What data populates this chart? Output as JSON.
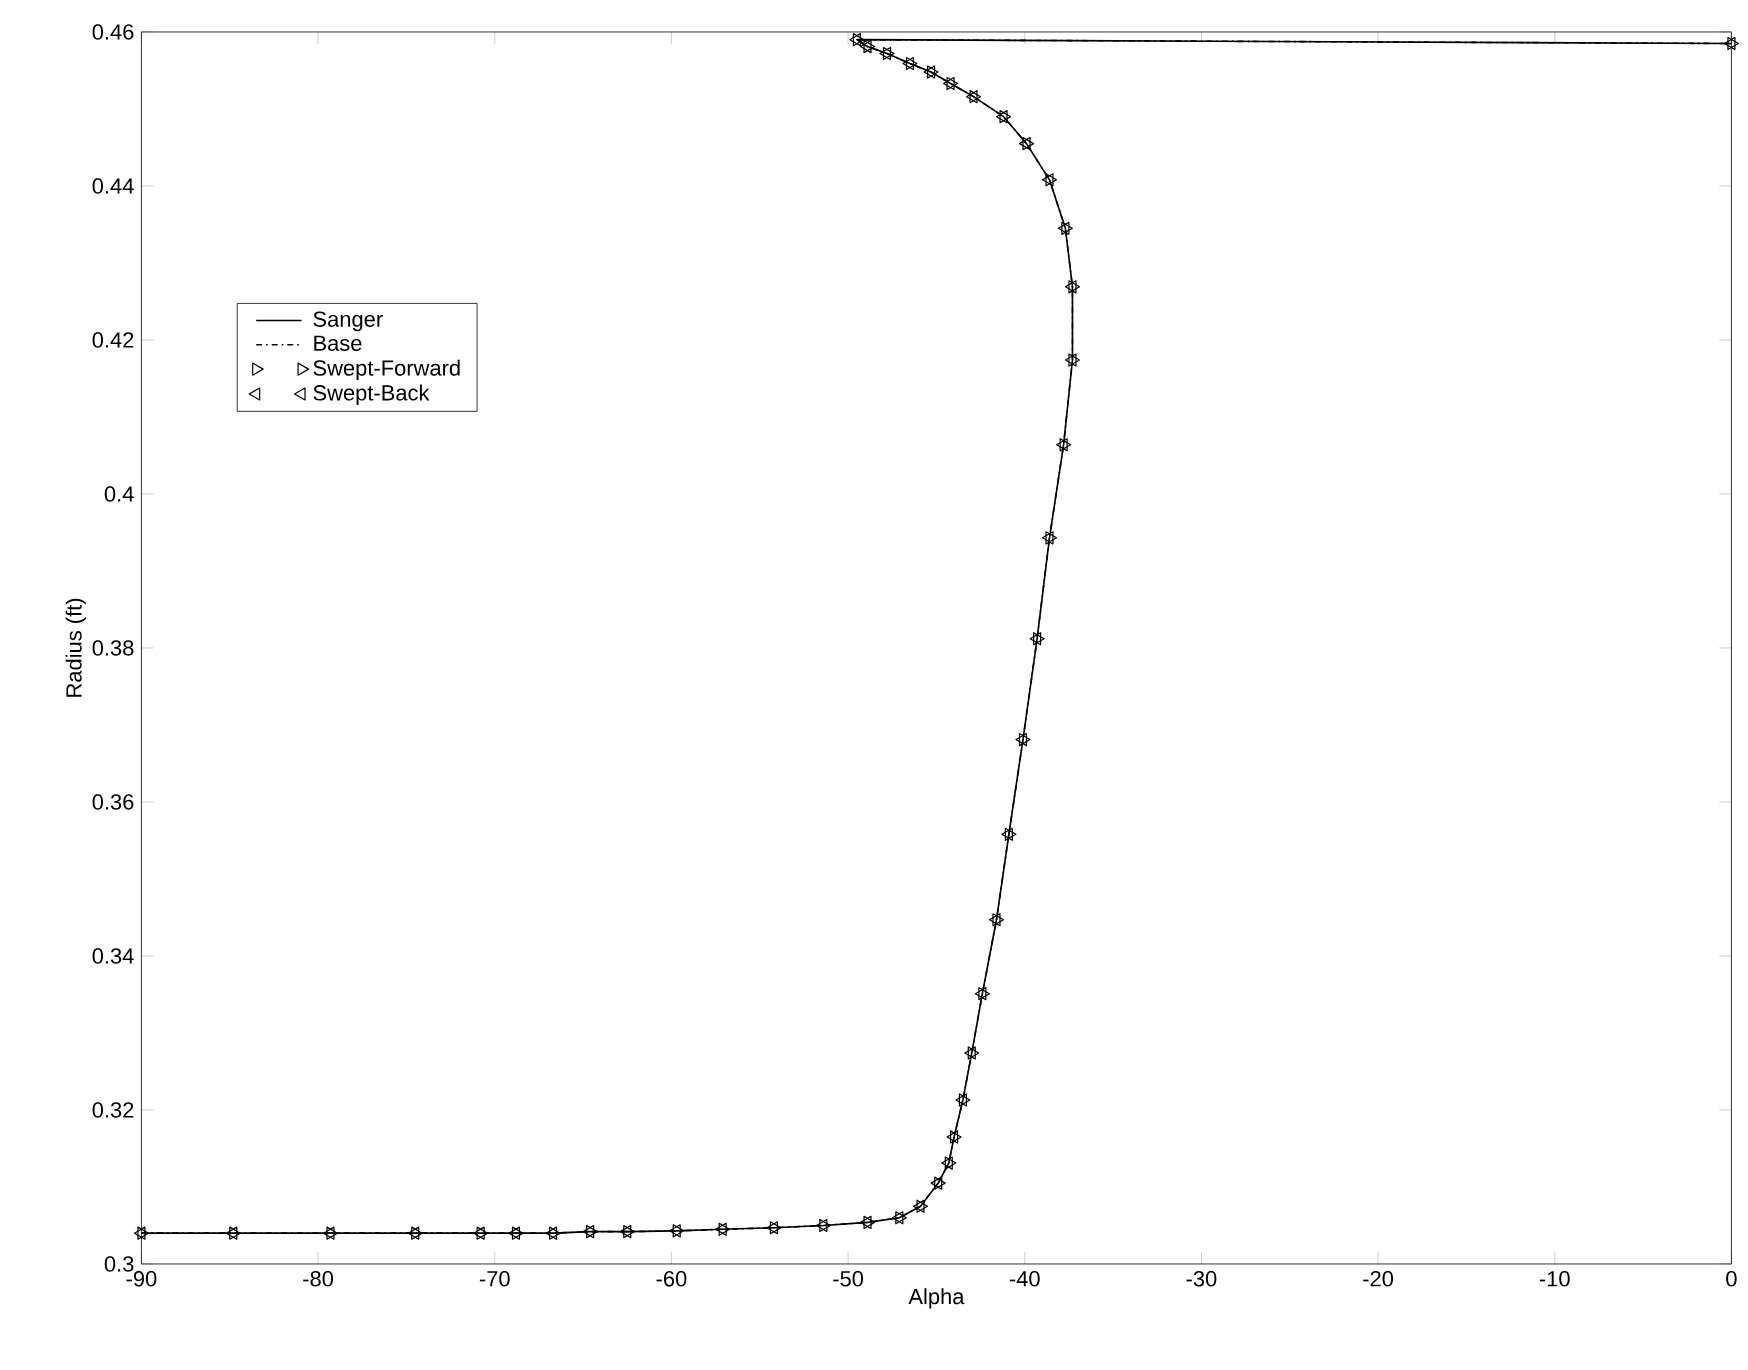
{
  "chart_data": {
    "type": "line",
    "xlabel": "Alpha",
    "ylabel": "Radius (ft)",
    "x": [
      -90,
      -84.8,
      -79.3,
      -74.5,
      -70.8,
      -68.8,
      -66.7,
      -64.6,
      -62.5,
      -59.7,
      -57.1,
      -54.2,
      -51.4,
      -48.9,
      -47.1,
      -45.9,
      -44.9,
      -44.3,
      -44.0,
      -43.5,
      -43.0,
      -42.4,
      -41.6,
      -40.9,
      -40.1,
      -39.3,
      -38.6,
      -37.8,
      -37.3,
      -37.3,
      -37.7,
      -38.6,
      -39.9,
      -41.2,
      -42.9,
      -44.2,
      -45.3,
      -46.5,
      -47.8,
      -48.9,
      -49.5,
      0
    ],
    "series": [
      {
        "name": "Sanger",
        "color": "#000000",
        "line_style": "solid",
        "values": [
          0.304,
          0.304,
          0.304,
          0.304,
          0.304,
          0.304,
          0.304,
          0.3042,
          0.3042,
          0.3043,
          0.3045,
          0.3047,
          0.305,
          0.3054,
          0.306,
          0.3075,
          0.3105,
          0.3131,
          0.3165,
          0.3213,
          0.3274,
          0.3351,
          0.3447,
          0.3558,
          0.3681,
          0.3812,
          0.3943,
          0.4064,
          0.4174,
          0.4269,
          0.4345,
          0.4408,
          0.4455,
          0.449,
          0.4516,
          0.4533,
          0.4548,
          0.4559,
          0.4572,
          0.4581,
          0.459,
          0.4585
        ]
      },
      {
        "name": "Base",
        "color": "#000000",
        "line_style": "dash-dot",
        "values": [
          0.304,
          0.304,
          0.304,
          0.304,
          0.304,
          0.304,
          0.304,
          0.3042,
          0.3042,
          0.3043,
          0.3045,
          0.3047,
          0.305,
          0.3054,
          0.306,
          0.3075,
          0.3105,
          0.3131,
          0.3165,
          0.3213,
          0.3274,
          0.3351,
          0.3447,
          0.3558,
          0.3681,
          0.3812,
          0.3943,
          0.4064,
          0.4174,
          0.4269,
          0.4345,
          0.4408,
          0.4455,
          0.449,
          0.4516,
          0.4533,
          0.4548,
          0.4559,
          0.4572,
          0.4581,
          0.459,
          0.4585
        ]
      },
      {
        "name": "Swept-Forward",
        "type": "scatter",
        "color": "#000000",
        "marker": "triangle",
        "values": [
          0.304,
          0.304,
          0.304,
          0.304,
          0.304,
          0.304,
          0.304,
          0.3042,
          0.3042,
          0.3043,
          0.3045,
          0.3047,
          0.305,
          0.3054,
          0.306,
          0.3075,
          0.3105,
          0.3131,
          0.3165,
          0.3213,
          0.3274,
          0.3351,
          0.3447,
          0.3558,
          0.3681,
          0.3812,
          0.3943,
          0.4064,
          0.4174,
          0.4269,
          0.4345,
          0.4408,
          0.4455,
          0.449,
          0.4516,
          0.4533,
          0.4548,
          0.4559,
          0.4572,
          0.4581,
          0.459,
          0.4585
        ]
      },
      {
        "name": "Swept-Back",
        "type": "scatter",
        "color": "#000000",
        "marker": "triangle",
        "values": [
          0.304,
          0.304,
          0.304,
          0.304,
          0.304,
          0.304,
          0.304,
          0.3042,
          0.3042,
          0.3043,
          0.3045,
          0.3047,
          0.305,
          0.3054,
          0.306,
          0.3075,
          0.3105,
          0.3131,
          0.3165,
          0.3213,
          0.3274,
          0.3351,
          0.3447,
          0.3558,
          0.3681,
          0.3812,
          0.3943,
          0.4064,
          0.4174,
          0.4269,
          0.4345,
          0.4408,
          0.4455,
          0.449,
          0.4516,
          0.4533,
          0.4548,
          0.4559,
          0.4572,
          0.4581,
          0.459,
          0.4585
        ]
      }
    ],
    "xlim": [
      -90,
      0
    ],
    "ylim": [
      0.3,
      0.46
    ],
    "xticks": [
      -90,
      -80,
      -70,
      -60,
      -50,
      -40,
      -30,
      -20,
      -10,
      0
    ],
    "yticks": [
      0.3,
      0.32,
      0.34,
      0.36,
      0.38,
      0.4,
      0.42,
      0.44,
      0.46
    ],
    "grid": false,
    "legend": "top left"
  }
}
